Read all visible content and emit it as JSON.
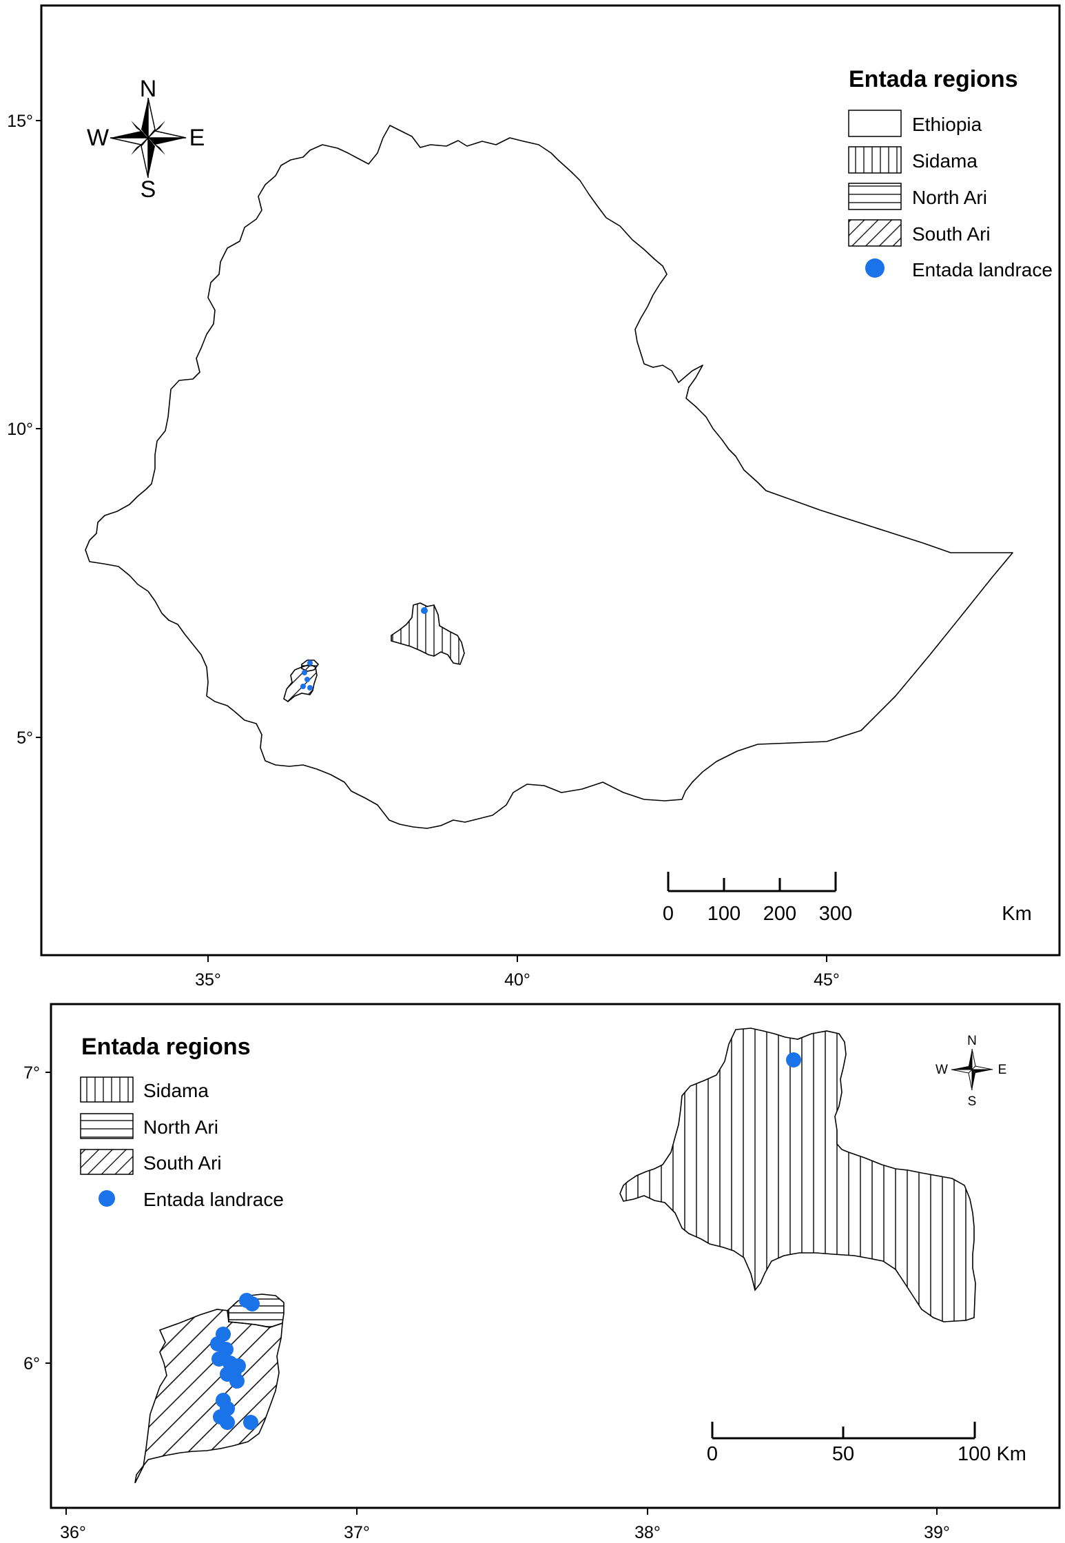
{
  "top_map": {
    "legend": {
      "title": "Entada regions",
      "items": [
        {
          "label": "Ethiopia",
          "symbol": "blank"
        },
        {
          "label": "Sidama",
          "symbol": "vertical-hatch"
        },
        {
          "label": "North Ari",
          "symbol": "horizontal-hatch"
        },
        {
          "label": "South Ari",
          "symbol": "diagonal-hatch"
        },
        {
          "label": "Entada landrace",
          "symbol": "blue-dot"
        }
      ]
    },
    "compass": {
      "n": "N",
      "s": "S",
      "w": "W",
      "e": "E"
    },
    "lat_ticks": [
      "15°",
      "10°",
      "5°"
    ],
    "lon_ticks": [
      "35°",
      "40°",
      "45°"
    ],
    "scale": {
      "labels": [
        "0",
        "100",
        "200",
        "300"
      ],
      "unit": "Km"
    }
  },
  "bottom_map": {
    "legend": {
      "title": "Entada regions",
      "items": [
        {
          "label": "Sidama",
          "symbol": "vertical-hatch"
        },
        {
          "label": "North Ari",
          "symbol": "horizontal-hatch"
        },
        {
          "label": "South Ari",
          "symbol": "diagonal-hatch"
        },
        {
          "label": "Entada landrace",
          "symbol": "blue-dot"
        }
      ]
    },
    "compass": {
      "n": "N",
      "s": "S",
      "w": "W",
      "e": "E"
    },
    "lat_ticks": [
      "7°",
      "6°"
    ],
    "lon_ticks": [
      "36°",
      "37°",
      "38°",
      "39°"
    ],
    "scale": {
      "labels": [
        "0",
        "50",
        "100 Km"
      ]
    }
  },
  "colors": {
    "point": "#1a73e8",
    "line": "#000000",
    "background": "#ffffff"
  }
}
